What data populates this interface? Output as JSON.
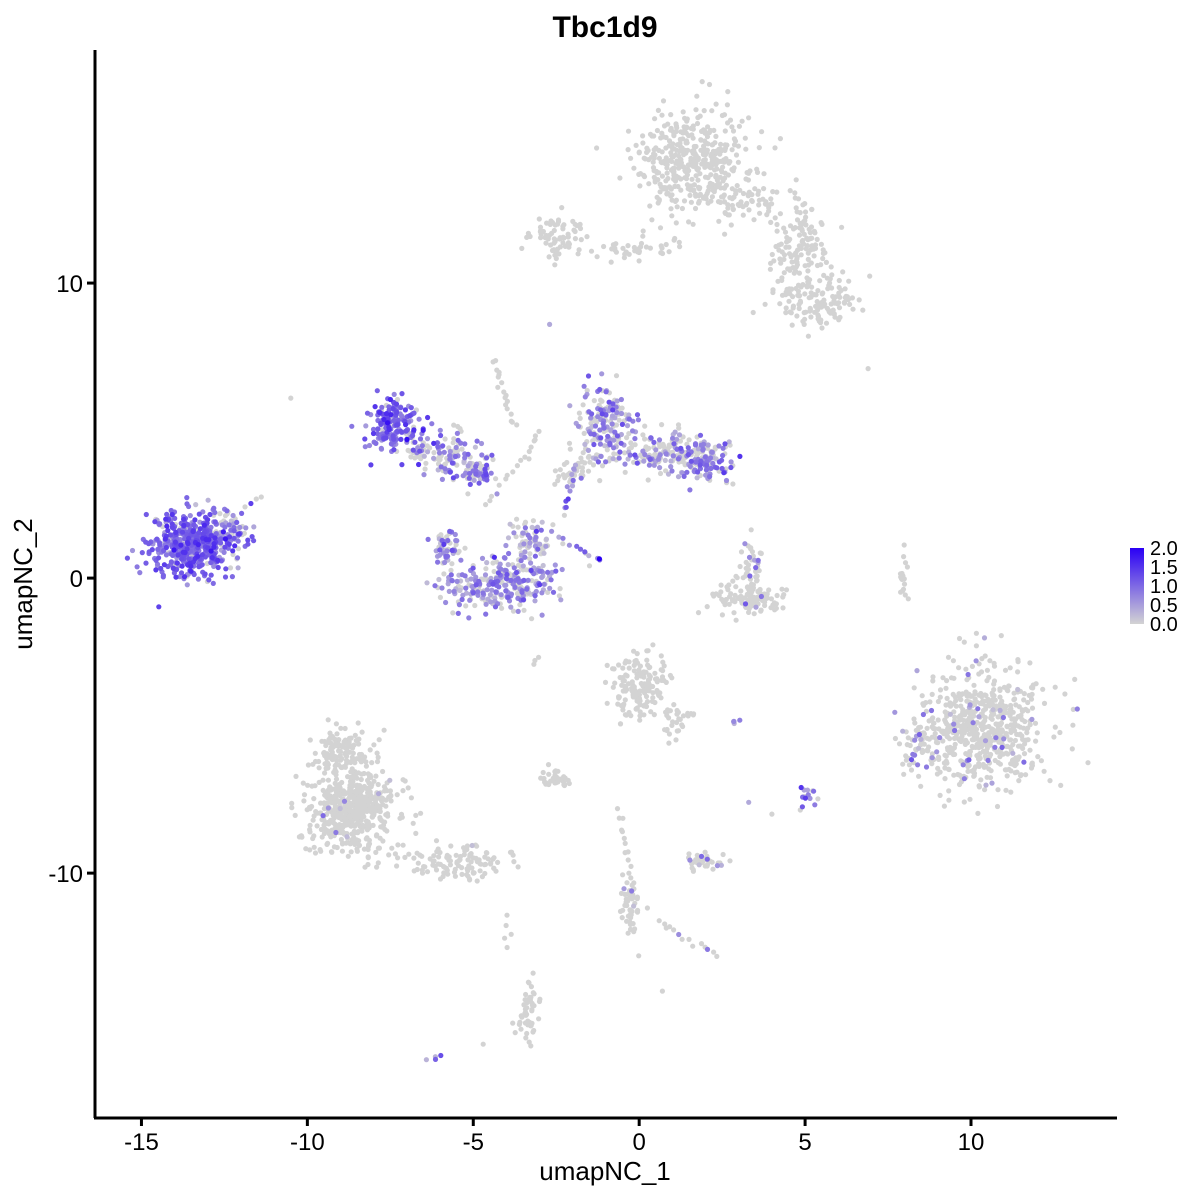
{
  "chart_data": {
    "type": "scatter",
    "title": "Tbc1d9",
    "xlabel": "umapNC_1",
    "ylabel": "umapNC_2",
    "xlim": [
      -16.4,
      14.4
    ],
    "ylim": [
      -18.3,
      17.9
    ],
    "x_ticks": [
      {
        "value": -15,
        "label": "-15"
      },
      {
        "value": -10,
        "label": "-10"
      },
      {
        "value": -5,
        "label": "-5"
      },
      {
        "value": 0,
        "label": "0"
      },
      {
        "value": 5,
        "label": "5"
      },
      {
        "value": 10,
        "label": "10"
      }
    ],
    "y_ticks": [
      {
        "value": -10,
        "label": "-10"
      },
      {
        "value": 0,
        "label": "0"
      },
      {
        "value": 10,
        "label": "10"
      }
    ],
    "grid": false,
    "legend": {
      "placement": "right",
      "type": "colorbar",
      "min": 0.0,
      "max": 2.0,
      "low_color": "#d3d3d3",
      "high_color": "#2a00f5",
      "ticks": [
        {
          "value": 2.0,
          "label": "2.0"
        },
        {
          "value": 1.5,
          "label": "1.5"
        },
        {
          "value": 1.0,
          "label": "1.0"
        },
        {
          "value": 0.5,
          "label": "0.5"
        },
        {
          "value": 0.0,
          "label": "0.0"
        }
      ]
    },
    "clusters": [
      {
        "cx": 1.6,
        "cy": 14.2,
        "sx": 1.1,
        "sy": 1.2,
        "n": 420,
        "expr_frac": 0.0,
        "expr_mean": 0.0
      },
      {
        "cx": 4.8,
        "cy": 11.2,
        "sx": 0.6,
        "sy": 0.9,
        "n": 110,
        "expr_frac": 0.0,
        "expr_mean": 0.0
      },
      {
        "cx": 5.4,
        "cy": 9.4,
        "sx": 0.8,
        "sy": 0.6,
        "n": 130,
        "expr_frac": 0.0,
        "expr_mean": 0.0
      },
      {
        "cx": -2.5,
        "cy": 11.5,
        "sx": 0.6,
        "sy": 0.5,
        "n": 70,
        "expr_frac": 0.02,
        "expr_mean": 0.6
      },
      {
        "cx": -0.2,
        "cy": 11.1,
        "sx": 0.9,
        "sy": 0.25,
        "n": 40,
        "expr_frac": 0.0,
        "expr_mean": 0.0
      },
      {
        "cx": 3.2,
        "cy": 12.8,
        "sx": 0.7,
        "sy": 0.5,
        "n": 60,
        "expr_frac": 0.0,
        "expr_mean": 0.0
      },
      {
        "cx": -13.5,
        "cy": 1.2,
        "sx": 0.8,
        "sy": 0.7,
        "n": 520,
        "expr_frac": 0.9,
        "expr_mean": 1.0
      },
      {
        "cx": -12.4,
        "cy": 1.5,
        "sx": 0.4,
        "sy": 0.7,
        "n": 70,
        "expr_frac": 0.7,
        "expr_mean": 0.8
      },
      {
        "cx": -7.4,
        "cy": 5.2,
        "sx": 0.5,
        "sy": 0.6,
        "n": 180,
        "expr_frac": 0.9,
        "expr_mean": 1.0
      },
      {
        "cx": -6.0,
        "cy": 4.3,
        "sx": 0.8,
        "sy": 0.5,
        "n": 120,
        "expr_frac": 0.4,
        "expr_mean": 0.7
      },
      {
        "cx": -4.9,
        "cy": 3.6,
        "sx": 0.4,
        "sy": 0.3,
        "n": 60,
        "expr_frac": 0.6,
        "expr_mean": 0.8
      },
      {
        "cx": -4.2,
        "cy": -0.2,
        "sx": 1.2,
        "sy": 0.6,
        "n": 280,
        "expr_frac": 0.65,
        "expr_mean": 0.7
      },
      {
        "cx": -3.3,
        "cy": 1.2,
        "sx": 0.4,
        "sy": 0.6,
        "n": 70,
        "expr_frac": 0.5,
        "expr_mean": 0.6
      },
      {
        "cx": -5.8,
        "cy": 1.0,
        "sx": 0.3,
        "sy": 0.5,
        "n": 50,
        "expr_frac": 0.6,
        "expr_mean": 0.7
      },
      {
        "cx": -1.0,
        "cy": 5.2,
        "sx": 0.5,
        "sy": 0.9,
        "n": 170,
        "expr_frac": 0.6,
        "expr_mean": 0.7
      },
      {
        "cx": 0.8,
        "cy": 4.2,
        "sx": 0.9,
        "sy": 0.5,
        "n": 150,
        "expr_frac": 0.5,
        "expr_mean": 0.7
      },
      {
        "cx": 2.1,
        "cy": 4.0,
        "sx": 0.5,
        "sy": 0.5,
        "n": 110,
        "expr_frac": 0.6,
        "expr_mean": 0.8
      },
      {
        "cx": -2.0,
        "cy": 3.6,
        "sx": 0.4,
        "sy": 0.4,
        "n": 40,
        "expr_frac": 0.3,
        "expr_mean": 0.6
      },
      {
        "cx": 3.3,
        "cy": -0.7,
        "sx": 0.8,
        "sy": 0.3,
        "n": 110,
        "expr_frac": 0.05,
        "expr_mean": 0.6
      },
      {
        "cx": 3.4,
        "cy": 0.5,
        "sx": 0.3,
        "sy": 0.6,
        "n": 40,
        "expr_frac": 0.15,
        "expr_mean": 0.6
      },
      {
        "cx": 10.3,
        "cy": -5.1,
        "sx": 1.3,
        "sy": 1.3,
        "n": 620,
        "expr_frac": 0.06,
        "expr_mean": 0.6
      },
      {
        "cx": 8.5,
        "cy": -5.6,
        "sx": 0.4,
        "sy": 0.6,
        "n": 50,
        "expr_frac": 0.3,
        "expr_mean": 0.7
      },
      {
        "cx": 0.0,
        "cy": -3.6,
        "sx": 0.6,
        "sy": 0.7,
        "n": 160,
        "expr_frac": 0.0,
        "expr_mean": 0.0
      },
      {
        "cx": 1.1,
        "cy": -4.8,
        "sx": 0.3,
        "sy": 0.5,
        "n": 30,
        "expr_frac": 0.0,
        "expr_mean": 0.0
      },
      {
        "cx": -8.7,
        "cy": -7.8,
        "sx": 0.9,
        "sy": 1.0,
        "n": 560,
        "expr_frac": 0.02,
        "expr_mean": 0.5
      },
      {
        "cx": -9.0,
        "cy": -5.8,
        "sx": 0.5,
        "sy": 0.5,
        "n": 100,
        "expr_frac": 0.0,
        "expr_mean": 0.0
      },
      {
        "cx": -5.4,
        "cy": -9.6,
        "sx": 1.0,
        "sy": 0.4,
        "n": 110,
        "expr_frac": 0.03,
        "expr_mean": 0.5
      },
      {
        "cx": -2.6,
        "cy": -6.8,
        "sx": 0.3,
        "sy": 0.2,
        "n": 35,
        "expr_frac": 0.05,
        "expr_mean": 0.5
      },
      {
        "cx": 2.0,
        "cy": -9.6,
        "sx": 0.5,
        "sy": 0.2,
        "n": 40,
        "expr_frac": 0.12,
        "expr_mean": 0.6
      },
      {
        "cx": 5.0,
        "cy": -7.4,
        "sx": 0.2,
        "sy": 0.3,
        "n": 14,
        "expr_frac": 0.7,
        "expr_mean": 0.8
      },
      {
        "cx": -0.3,
        "cy": -11.2,
        "sx": 0.2,
        "sy": 0.8,
        "n": 45,
        "expr_frac": 0.05,
        "expr_mean": 0.5
      },
      {
        "cx": -3.4,
        "cy": -14.7,
        "sx": 0.2,
        "sy": 0.6,
        "n": 50,
        "expr_frac": 0.0,
        "expr_mean": 0.0
      },
      {
        "cx": 8.0,
        "cy": 0.0,
        "sx": 0.1,
        "sy": 0.5,
        "n": 18,
        "expr_frac": 0.0,
        "expr_mean": 0.0
      }
    ],
    "trails": [
      {
        "from": [
          -4.4,
          7.4
        ],
        "to": [
          -3.8,
          5.2
        ],
        "n": 18,
        "expr_frac": 0.0
      },
      {
        "from": [
          -3.6,
          4.0
        ],
        "to": [
          -4.6,
          2.4
        ],
        "n": 10,
        "expr_frac": 0.1
      },
      {
        "from": [
          -3.0,
          5.0
        ],
        "to": [
          -3.4,
          4.0
        ],
        "n": 8,
        "expr_frac": 0.2
      },
      {
        "from": [
          -2.6,
          1.5
        ],
        "to": [
          -1.2,
          0.6
        ],
        "n": 12,
        "expr_frac": 0.8
      },
      {
        "from": [
          -2.0,
          3.4
        ],
        "to": [
          -2.3,
          2.2
        ],
        "n": 8,
        "expr_frac": 0.6
      },
      {
        "from": [
          -0.6,
          -7.8
        ],
        "to": [
          -0.1,
          -11.6
        ],
        "n": 20,
        "expr_frac": 0.0
      },
      {
        "from": [
          0.5,
          -11.6
        ],
        "to": [
          2.4,
          -12.8
        ],
        "n": 14,
        "expr_frac": 0.15
      },
      {
        "from": [
          4.7,
          13.1
        ],
        "to": [
          6.2,
          9.6
        ],
        "n": 16,
        "expr_frac": 0.0
      },
      {
        "from": [
          -6.3,
          -16.4
        ],
        "to": [
          -6.0,
          -16.2
        ],
        "n": 4,
        "expr_frac": 1.0
      },
      {
        "from": [
          -12.1,
          2.1
        ],
        "to": [
          -11.4,
          2.8
        ],
        "n": 6,
        "expr_frac": 0.5
      },
      {
        "from": [
          -4.0,
          -11.5
        ],
        "to": [
          -3.9,
          -12.5
        ],
        "n": 5,
        "expr_frac": 0.0
      },
      {
        "from": [
          2.8,
          -5.0
        ],
        "to": [
          3.0,
          -4.9
        ],
        "n": 4,
        "expr_frac": 1.0
      },
      {
        "from": [
          -3.2,
          -2.9
        ],
        "to": [
          -3.0,
          -2.7
        ],
        "n": 3,
        "expr_frac": 0.0
      }
    ],
    "singles": [
      {
        "x": -1.2,
        "y": 0.65,
        "value": 2.0
      },
      {
        "x": -7.0,
        "y": 4.7,
        "value": 1.9
      },
      {
        "x": -5.6,
        "y": 3.4,
        "value": 1.3
      },
      {
        "x": -5.0,
        "y": -0.5,
        "value": 1.1
      },
      {
        "x": -2.2,
        "y": 2.4,
        "value": 1.2
      },
      {
        "x": 9.8,
        "y": -6.8,
        "value": 0.8
      },
      {
        "x": -2.7,
        "y": 8.6,
        "value": 0.4
      },
      {
        "x": -10.5,
        "y": 6.1,
        "value": 0.0
      },
      {
        "x": 6.9,
        "y": 7.1,
        "value": 0.0
      },
      {
        "x": 5.1,
        "y": 8.2,
        "value": 0.0
      },
      {
        "x": -4.7,
        "y": -15.8,
        "value": 0.0
      },
      {
        "x": 0.7,
        "y": -14.0,
        "value": 0.0
      },
      {
        "x": 3.3,
        "y": -7.6,
        "value": 0.4
      },
      {
        "x": 4.0,
        "y": -8.0,
        "value": 0.0
      }
    ]
  }
}
